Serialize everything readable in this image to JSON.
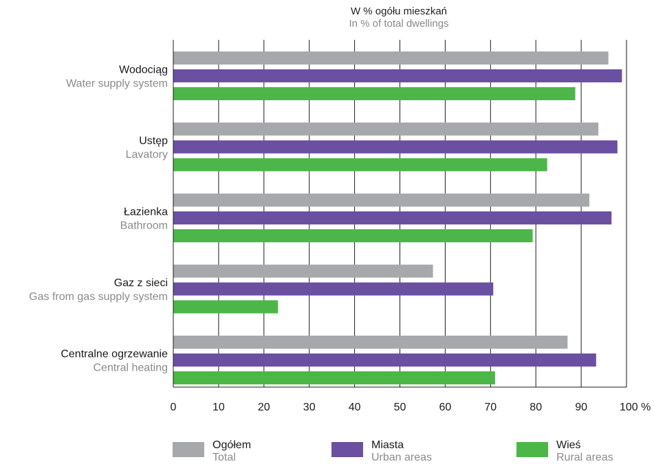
{
  "chart_data": {
    "type": "bar",
    "orientation": "horizontal",
    "title": "W % ogółu mieszkań",
    "subtitle": "In % of total dwellings",
    "categories": [
      {
        "label": "Wodociąg",
        "sublabel": "Water supply system"
      },
      {
        "label": "Ustęp",
        "sublabel": "Lavatory"
      },
      {
        "label": "Łazienka",
        "sublabel": "Bathroom"
      },
      {
        "label": "Gaz z sieci",
        "sublabel": "Gas from gas supply system"
      },
      {
        "label": "Centralne ogrzewanie",
        "sublabel": "Central heating"
      }
    ],
    "series": [
      {
        "name": "Ogółem",
        "subname": "Total",
        "color": "#a7a8ab",
        "values": [
          96.0,
          93.8,
          91.8,
          57.3,
          87.0
        ]
      },
      {
        "name": "Miasta",
        "subname": "Urban areas",
        "color": "#6b4fa0",
        "values": [
          99.0,
          98.0,
          96.7,
          70.6,
          93.3
        ]
      },
      {
        "name": "Wieś",
        "subname": "Rural areas",
        "color": "#4cb648",
        "values": [
          88.7,
          82.5,
          79.3,
          23.1,
          71.0
        ]
      }
    ],
    "xlim": [
      0,
      100
    ],
    "xticks": [
      0,
      10,
      20,
      30,
      40,
      50,
      60,
      70,
      80,
      90,
      100
    ],
    "xtick_labels": [
      "0",
      "10",
      "20",
      "30",
      "40",
      "50",
      "60",
      "70",
      "80",
      "90",
      "100 %"
    ],
    "grid": true,
    "legend_position": "bottom"
  }
}
